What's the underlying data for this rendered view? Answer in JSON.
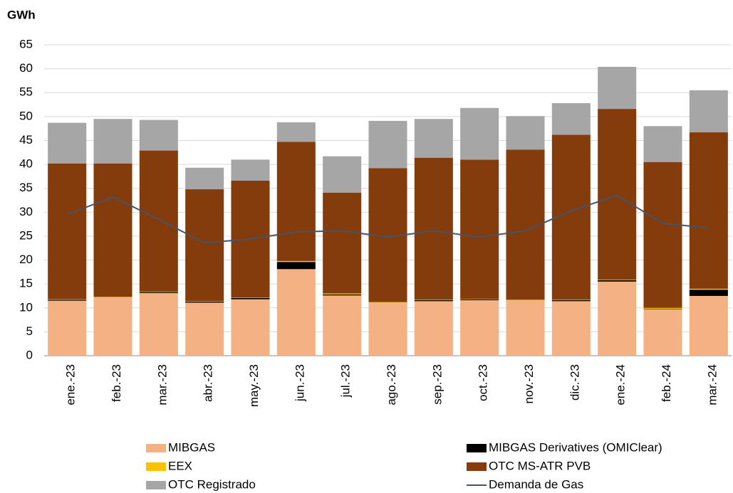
{
  "chart_data": {
    "type": "bar",
    "stacked": true,
    "y_axis_label": "GWh",
    "categories": [
      "ene.-23",
      "feb.-23",
      "mar.-23",
      "abr.-23",
      "may.-23",
      "jun.-23",
      "jul.-23",
      "ago.-23",
      "sep.-23",
      "oct.-23",
      "nov.-23",
      "dic.-23",
      "ene.-24",
      "feb.-24",
      "mar.-24"
    ],
    "series": [
      {
        "name": "MIBGAS",
        "color": "#f4b183",
        "values": [
          11.5,
          12.2,
          13.1,
          11.1,
          11.8,
          18.1,
          12.6,
          11.1,
          11.4,
          11.6,
          11.6,
          11.4,
          15.5,
          9.7,
          12.5
        ]
      },
      {
        "name": "MIBGAS Derivatives (OMIClear)",
        "color": "#000000",
        "values": [
          0.2,
          0,
          0.2,
          0.2,
          0.3,
          1.5,
          0.2,
          0,
          0.2,
          0.2,
          0,
          0.2,
          0.3,
          0.1,
          1.3
        ]
      },
      {
        "name": "EEX",
        "color": "#ffc000",
        "values": [
          0.1,
          0.1,
          0.1,
          0.1,
          0.1,
          0.2,
          0.2,
          0.1,
          0.1,
          0.1,
          0.1,
          0.1,
          0.1,
          0.2,
          0.2
        ]
      },
      {
        "name": "OTC MS-ATR PVB",
        "color": "#843c0c",
        "values": [
          28.4,
          27.9,
          29.5,
          23.4,
          24.4,
          24.9,
          21.1,
          28.0,
          29.7,
          29.1,
          31.4,
          34.5,
          35.7,
          30.5,
          32.7
        ]
      },
      {
        "name": "OTC Registrado",
        "color": "#a6a6a6",
        "values": [
          8.5,
          9.3,
          6.4,
          4.5,
          4.4,
          4.1,
          7.6,
          9.9,
          8.1,
          10.8,
          7.0,
          6.6,
          8.8,
          7.5,
          8.8
        ]
      },
      {
        "name": "Demanda de Gas",
        "type": "line",
        "color": "#44546a",
        "values": [
          29.5,
          33.2,
          28.5,
          23.6,
          24.4,
          25.9,
          26.1,
          24.8,
          26.1,
          24.8,
          26.1,
          30.3,
          33.5,
          27.7,
          26.7
        ]
      }
    ],
    "ylim": [
      0,
      65
    ],
    "yticks": [
      0,
      5,
      10,
      15,
      20,
      25,
      30,
      35,
      40,
      45,
      50,
      55,
      60,
      65
    ],
    "grid": true,
    "legend": "bottom"
  }
}
